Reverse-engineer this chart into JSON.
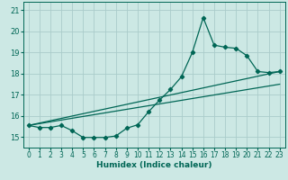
{
  "xlabel": "Humidex (Indice chaleur)",
  "bg_color": "#cce8e4",
  "grid_color": "#aaccca",
  "line_color": "#006655",
  "xlim": [
    -0.5,
    23.5
  ],
  "ylim": [
    14.5,
    21.4
  ],
  "xticks": [
    0,
    1,
    2,
    3,
    4,
    5,
    6,
    7,
    8,
    9,
    10,
    11,
    12,
    13,
    14,
    15,
    16,
    17,
    18,
    19,
    20,
    21,
    22,
    23
  ],
  "yticks": [
    15,
    16,
    17,
    18,
    19,
    20,
    21
  ],
  "series1_x": [
    0,
    1,
    2,
    3,
    4,
    5,
    6,
    7,
    8,
    9,
    10,
    11,
    12,
    13,
    14,
    15,
    16,
    17,
    18,
    19,
    20,
    21,
    22,
    23
  ],
  "series1_y": [
    15.55,
    15.45,
    15.45,
    15.55,
    15.3,
    14.98,
    14.98,
    14.98,
    15.05,
    15.42,
    15.58,
    16.2,
    16.75,
    17.25,
    17.85,
    19.0,
    20.65,
    19.35,
    19.25,
    19.2,
    18.85,
    18.1,
    18.05,
    18.1
  ],
  "line1_x": [
    0,
    23
  ],
  "line1_y": [
    15.55,
    18.1
  ],
  "line2_x": [
    0,
    23
  ],
  "line2_y": [
    15.55,
    17.5
  ]
}
